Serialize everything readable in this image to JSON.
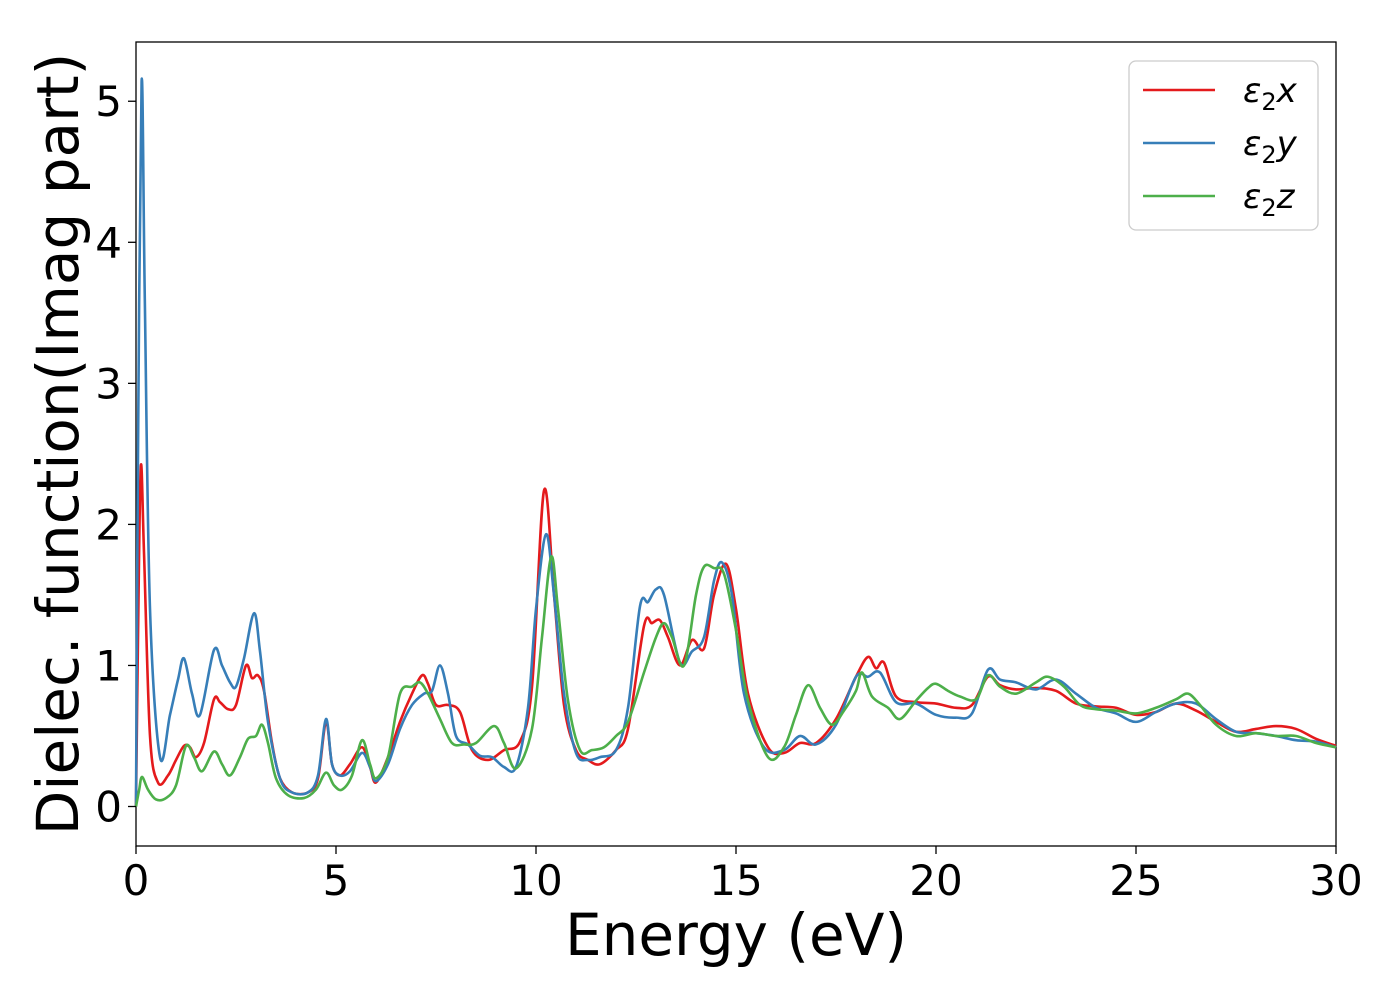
{
  "chart_data": {
    "type": "line",
    "xlabel": "Energy (eV)",
    "ylabel": "Dielec. function(Imag part)",
    "xlim": [
      0,
      30
    ],
    "ylim": [
      -0.28,
      5.42
    ],
    "xticks": [
      0,
      5,
      10,
      15,
      20,
      25,
      30
    ],
    "yticks": [
      0,
      1,
      2,
      3,
      4,
      5
    ],
    "grid": false,
    "legend_position": "top-right",
    "series": [
      {
        "name_base": "ε",
        "name_sub": "2",
        "name_var": "x",
        "color": "#e41a1c",
        "points": [
          [
            0.0,
            0.0
          ],
          [
            0.05,
            1.2
          ],
          [
            0.12,
            2.41
          ],
          [
            0.2,
            1.8
          ],
          [
            0.35,
            0.5
          ],
          [
            0.55,
            0.17
          ],
          [
            0.8,
            0.22
          ],
          [
            1.0,
            0.33
          ],
          [
            1.2,
            0.43
          ],
          [
            1.35,
            0.42
          ],
          [
            1.5,
            0.35
          ],
          [
            1.7,
            0.45
          ],
          [
            1.95,
            0.76
          ],
          [
            2.1,
            0.74
          ],
          [
            2.3,
            0.69
          ],
          [
            2.5,
            0.72
          ],
          [
            2.75,
            1.0
          ],
          [
            2.9,
            0.91
          ],
          [
            3.05,
            0.93
          ],
          [
            3.2,
            0.82
          ],
          [
            3.4,
            0.45
          ],
          [
            3.6,
            0.2
          ],
          [
            3.9,
            0.1
          ],
          [
            4.3,
            0.1
          ],
          [
            4.55,
            0.2
          ],
          [
            4.75,
            0.6
          ],
          [
            4.9,
            0.3
          ],
          [
            5.1,
            0.22
          ],
          [
            5.35,
            0.3
          ],
          [
            5.65,
            0.42
          ],
          [
            5.85,
            0.28
          ],
          [
            6.0,
            0.17
          ],
          [
            6.3,
            0.35
          ],
          [
            6.6,
            0.6
          ],
          [
            6.9,
            0.8
          ],
          [
            7.15,
            0.93
          ],
          [
            7.3,
            0.87
          ],
          [
            7.5,
            0.72
          ],
          [
            7.8,
            0.72
          ],
          [
            8.1,
            0.67
          ],
          [
            8.4,
            0.4
          ],
          [
            8.8,
            0.33
          ],
          [
            9.2,
            0.4
          ],
          [
            9.6,
            0.46
          ],
          [
            9.9,
            0.85
          ],
          [
            10.2,
            2.24
          ],
          [
            10.45,
            1.5
          ],
          [
            10.7,
            0.72
          ],
          [
            11.0,
            0.4
          ],
          [
            11.3,
            0.33
          ],
          [
            11.6,
            0.3
          ],
          [
            12.0,
            0.4
          ],
          [
            12.3,
            0.55
          ],
          [
            12.7,
            1.28
          ],
          [
            12.9,
            1.3
          ],
          [
            13.1,
            1.32
          ],
          [
            13.3,
            1.2
          ],
          [
            13.6,
            1.0
          ],
          [
            13.9,
            1.18
          ],
          [
            14.2,
            1.12
          ],
          [
            14.45,
            1.5
          ],
          [
            14.75,
            1.72
          ],
          [
            15.0,
            1.4
          ],
          [
            15.3,
            0.8
          ],
          [
            15.8,
            0.42
          ],
          [
            16.2,
            0.38
          ],
          [
            16.6,
            0.45
          ],
          [
            17.0,
            0.45
          ],
          [
            17.5,
            0.62
          ],
          [
            18.0,
            0.92
          ],
          [
            18.3,
            1.06
          ],
          [
            18.5,
            0.98
          ],
          [
            18.7,
            1.02
          ],
          [
            19.0,
            0.78
          ],
          [
            19.5,
            0.74
          ],
          [
            20.0,
            0.73
          ],
          [
            20.5,
            0.7
          ],
          [
            20.9,
            0.72
          ],
          [
            21.3,
            0.92
          ],
          [
            21.6,
            0.86
          ],
          [
            22.0,
            0.83
          ],
          [
            22.5,
            0.84
          ],
          [
            23.0,
            0.82
          ],
          [
            23.5,
            0.73
          ],
          [
            24.0,
            0.71
          ],
          [
            24.5,
            0.7
          ],
          [
            25.0,
            0.65
          ],
          [
            25.5,
            0.67
          ],
          [
            26.0,
            0.73
          ],
          [
            26.5,
            0.68
          ],
          [
            27.0,
            0.6
          ],
          [
            27.5,
            0.53
          ],
          [
            28.0,
            0.55
          ],
          [
            28.5,
            0.57
          ],
          [
            29.0,
            0.55
          ],
          [
            29.5,
            0.48
          ],
          [
            30.0,
            0.43
          ]
        ]
      },
      {
        "name_base": "ε",
        "name_sub": "2",
        "name_var": "y",
        "color": "#377eb8",
        "points": [
          [
            0.0,
            0.0
          ],
          [
            0.05,
            2.5
          ],
          [
            0.14,
            5.14
          ],
          [
            0.22,
            3.6
          ],
          [
            0.35,
            1.4
          ],
          [
            0.6,
            0.35
          ],
          [
            0.85,
            0.65
          ],
          [
            1.05,
            0.9
          ],
          [
            1.2,
            1.05
          ],
          [
            1.4,
            0.8
          ],
          [
            1.6,
            0.65
          ],
          [
            1.95,
            1.11
          ],
          [
            2.15,
            1.0
          ],
          [
            2.35,
            0.88
          ],
          [
            2.5,
            0.85
          ],
          [
            2.7,
            1.05
          ],
          [
            2.95,
            1.37
          ],
          [
            3.1,
            1.1
          ],
          [
            3.3,
            0.6
          ],
          [
            3.6,
            0.2
          ],
          [
            3.9,
            0.1
          ],
          [
            4.3,
            0.1
          ],
          [
            4.55,
            0.22
          ],
          [
            4.75,
            0.62
          ],
          [
            4.9,
            0.3
          ],
          [
            5.1,
            0.22
          ],
          [
            5.35,
            0.25
          ],
          [
            5.65,
            0.38
          ],
          [
            5.85,
            0.28
          ],
          [
            6.0,
            0.18
          ],
          [
            6.3,
            0.3
          ],
          [
            6.6,
            0.55
          ],
          [
            6.9,
            0.72
          ],
          [
            7.2,
            0.8
          ],
          [
            7.4,
            0.82
          ],
          [
            7.6,
            1.0
          ],
          [
            7.8,
            0.8
          ],
          [
            8.0,
            0.5
          ],
          [
            8.3,
            0.44
          ],
          [
            8.6,
            0.36
          ],
          [
            8.9,
            0.35
          ],
          [
            9.2,
            0.28
          ],
          [
            9.5,
            0.28
          ],
          [
            9.8,
            0.7
          ],
          [
            10.0,
            1.4
          ],
          [
            10.25,
            1.93
          ],
          [
            10.45,
            1.5
          ],
          [
            10.7,
            0.8
          ],
          [
            11.0,
            0.38
          ],
          [
            11.3,
            0.33
          ],
          [
            11.6,
            0.35
          ],
          [
            12.0,
            0.4
          ],
          [
            12.3,
            0.7
          ],
          [
            12.6,
            1.42
          ],
          [
            12.8,
            1.45
          ],
          [
            13.0,
            1.54
          ],
          [
            13.2,
            1.5
          ],
          [
            13.6,
            1.02
          ],
          [
            13.9,
            1.1
          ],
          [
            14.2,
            1.2
          ],
          [
            14.45,
            1.6
          ],
          [
            14.65,
            1.73
          ],
          [
            14.9,
            1.5
          ],
          [
            15.2,
            0.8
          ],
          [
            15.7,
            0.42
          ],
          [
            16.2,
            0.4
          ],
          [
            16.6,
            0.5
          ],
          [
            17.0,
            0.44
          ],
          [
            17.5,
            0.58
          ],
          [
            18.0,
            0.92
          ],
          [
            18.3,
            0.92
          ],
          [
            18.6,
            0.95
          ],
          [
            19.0,
            0.74
          ],
          [
            19.5,
            0.73
          ],
          [
            20.0,
            0.65
          ],
          [
            20.5,
            0.63
          ],
          [
            20.9,
            0.66
          ],
          [
            21.3,
            0.97
          ],
          [
            21.6,
            0.9
          ],
          [
            22.0,
            0.88
          ],
          [
            22.5,
            0.83
          ],
          [
            23.0,
            0.9
          ],
          [
            23.5,
            0.8
          ],
          [
            24.0,
            0.7
          ],
          [
            24.5,
            0.66
          ],
          [
            25.0,
            0.6
          ],
          [
            25.5,
            0.67
          ],
          [
            26.0,
            0.73
          ],
          [
            26.5,
            0.73
          ],
          [
            27.0,
            0.62
          ],
          [
            27.5,
            0.53
          ],
          [
            28.0,
            0.52
          ],
          [
            28.5,
            0.5
          ],
          [
            29.0,
            0.47
          ],
          [
            29.5,
            0.46
          ],
          [
            30.0,
            0.42
          ]
        ]
      },
      {
        "name_base": "ε",
        "name_sub": "2",
        "name_var": "z",
        "color": "#4daf4a",
        "points": [
          [
            0.0,
            0.0
          ],
          [
            0.08,
            0.12
          ],
          [
            0.15,
            0.21
          ],
          [
            0.3,
            0.12
          ],
          [
            0.5,
            0.05
          ],
          [
            0.75,
            0.06
          ],
          [
            1.0,
            0.15
          ],
          [
            1.25,
            0.43
          ],
          [
            1.45,
            0.35
          ],
          [
            1.65,
            0.25
          ],
          [
            1.95,
            0.39
          ],
          [
            2.15,
            0.3
          ],
          [
            2.35,
            0.22
          ],
          [
            2.6,
            0.35
          ],
          [
            2.8,
            0.48
          ],
          [
            3.0,
            0.5
          ],
          [
            3.15,
            0.58
          ],
          [
            3.3,
            0.45
          ],
          [
            3.5,
            0.2
          ],
          [
            3.8,
            0.08
          ],
          [
            4.2,
            0.06
          ],
          [
            4.5,
            0.12
          ],
          [
            4.75,
            0.24
          ],
          [
            4.95,
            0.15
          ],
          [
            5.15,
            0.12
          ],
          [
            5.4,
            0.22
          ],
          [
            5.65,
            0.47
          ],
          [
            5.85,
            0.3
          ],
          [
            6.0,
            0.2
          ],
          [
            6.3,
            0.35
          ],
          [
            6.6,
            0.8
          ],
          [
            6.9,
            0.85
          ],
          [
            7.1,
            0.88
          ],
          [
            7.3,
            0.8
          ],
          [
            7.6,
            0.62
          ],
          [
            7.9,
            0.45
          ],
          [
            8.2,
            0.44
          ],
          [
            8.5,
            0.45
          ],
          [
            8.95,
            0.57
          ],
          [
            9.2,
            0.45
          ],
          [
            9.5,
            0.27
          ],
          [
            9.9,
            0.55
          ],
          [
            10.15,
            1.2
          ],
          [
            10.38,
            1.77
          ],
          [
            10.55,
            1.4
          ],
          [
            10.8,
            0.75
          ],
          [
            11.1,
            0.4
          ],
          [
            11.4,
            0.4
          ],
          [
            11.7,
            0.42
          ],
          [
            12.0,
            0.5
          ],
          [
            12.3,
            0.6
          ],
          [
            12.7,
            0.95
          ],
          [
            13.0,
            1.2
          ],
          [
            13.2,
            1.3
          ],
          [
            13.4,
            1.2
          ],
          [
            13.7,
            1.0
          ],
          [
            14.0,
            1.5
          ],
          [
            14.2,
            1.7
          ],
          [
            14.45,
            1.69
          ],
          [
            14.7,
            1.65
          ],
          [
            15.0,
            1.25
          ],
          [
            15.3,
            0.75
          ],
          [
            15.8,
            0.35
          ],
          [
            16.2,
            0.42
          ],
          [
            16.5,
            0.65
          ],
          [
            16.8,
            0.86
          ],
          [
            17.1,
            0.7
          ],
          [
            17.4,
            0.58
          ],
          [
            17.7,
            0.68
          ],
          [
            18.0,
            0.82
          ],
          [
            18.15,
            0.95
          ],
          [
            18.4,
            0.78
          ],
          [
            18.8,
            0.7
          ],
          [
            19.1,
            0.62
          ],
          [
            19.5,
            0.75
          ],
          [
            19.8,
            0.84
          ],
          [
            20.0,
            0.87
          ],
          [
            20.3,
            0.82
          ],
          [
            20.6,
            0.78
          ],
          [
            21.0,
            0.76
          ],
          [
            21.3,
            0.93
          ],
          [
            21.6,
            0.85
          ],
          [
            22.0,
            0.8
          ],
          [
            22.5,
            0.88
          ],
          [
            22.8,
            0.92
          ],
          [
            23.2,
            0.85
          ],
          [
            23.6,
            0.72
          ],
          [
            24.0,
            0.69
          ],
          [
            24.5,
            0.68
          ],
          [
            25.0,
            0.66
          ],
          [
            25.5,
            0.7
          ],
          [
            26.0,
            0.76
          ],
          [
            26.3,
            0.8
          ],
          [
            26.6,
            0.72
          ],
          [
            27.0,
            0.58
          ],
          [
            27.5,
            0.5
          ],
          [
            28.0,
            0.52
          ],
          [
            28.5,
            0.5
          ],
          [
            29.0,
            0.5
          ],
          [
            29.5,
            0.45
          ],
          [
            30.0,
            0.42
          ]
        ]
      }
    ]
  }
}
